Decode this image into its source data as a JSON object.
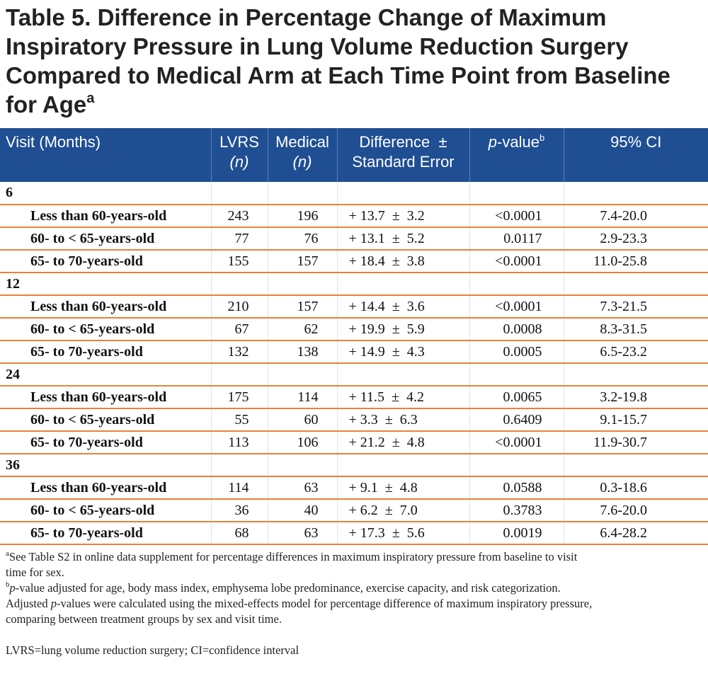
{
  "title": {
    "text": "Table 5. Difference in Percentage Change of Maximum Inspiratory Pressure in Lung Volume Reduction Surgery Compared to Medical Arm at Each Time Point from Baseline for Age",
    "sup": "a"
  },
  "header": {
    "visit": "Visit (Months)",
    "lvrs": "LVRS",
    "lvrs_n": "(n)",
    "medical": "Medical",
    "medical_n": "(n)",
    "difference_1": "Difference  ±",
    "difference_2": "Standard Error",
    "pvalue_p": "p",
    "pvalue_rest": "-value",
    "pvalue_sup": "b",
    "ci": "95% CI"
  },
  "groups": [
    {
      "visit": "6",
      "rows": [
        {
          "label": "Less than 60-years-old",
          "lvrs": "243",
          "medical": "196",
          "diff": "+ 13.7  ±  3.2",
          "p": "<0.0001",
          "ci": "7.4-20.0"
        },
        {
          "label": "60- to < 65-years-old",
          "lvrs": "77",
          "medical": "76",
          "diff": "+ 13.1  ±  5.2",
          "p": "0.0117",
          "ci": "2.9-23.3"
        },
        {
          "label": "65- to 70-years-old",
          "lvrs": "155",
          "medical": "157",
          "diff": "+ 18.4  ±  3.8",
          "p": "<0.0001",
          "ci": "11.0-25.8"
        }
      ]
    },
    {
      "visit": "12",
      "rows": [
        {
          "label": "Less than 60-years-old",
          "lvrs": "210",
          "medical": "157",
          "diff": "+ 14.4  ±  3.6",
          "p": "<0.0001",
          "ci": "7.3-21.5"
        },
        {
          "label": "60- to < 65-years-old",
          "lvrs": "67",
          "medical": "62",
          "diff": "+ 19.9  ±  5.9",
          "p": "0.0008",
          "ci": "8.3-31.5"
        },
        {
          "label": "65- to 70-years-old",
          "lvrs": "132",
          "medical": "138",
          "diff": "+ 14.9  ±  4.3",
          "p": "0.0005",
          "ci": "6.5-23.2"
        }
      ]
    },
    {
      "visit": "24",
      "rows": [
        {
          "label": "Less than 60-years-old",
          "lvrs": "175",
          "medical": "114",
          "diff": "+ 11.5  ±  4.2",
          "p": "0.0065",
          "ci": "3.2-19.8"
        },
        {
          "label": "60- to < 65-years-old",
          "lvrs": "55",
          "medical": "60",
          "diff": "+ 3.3  ±  6.3",
          "p": "0.6409",
          "ci": "9.1-15.7"
        },
        {
          "label": "65- to 70-years-old",
          "lvrs": "113",
          "medical": "106",
          "diff": "+ 21.2  ±  4.8",
          "p": "<0.0001",
          "ci": "11.9-30.7"
        }
      ]
    },
    {
      "visit": "36",
      "rows": [
        {
          "label": "Less than 60-years-old",
          "lvrs": "114",
          "medical": "63",
          "diff": "+ 9.1  ±  4.8",
          "p": "0.0588",
          "ci": "0.3-18.6"
        },
        {
          "label": "60- to < 65-years-old",
          "lvrs": "36",
          "medical": "40",
          "diff": "+ 6.2  ±  7.0",
          "p": "0.3783",
          "ci": "7.6-20.0"
        },
        {
          "label": "65- to 70-years-old",
          "lvrs": "68",
          "medical": "63",
          "diff": "+ 17.3  ±  5.6",
          "p": "0.0019",
          "ci": "6.4-28.2"
        }
      ]
    }
  ],
  "footnotes": {
    "a_mark": "a",
    "a_text": "See Table S2 in online data supplement for percentage differences in maximum inspiratory pressure from baseline to visit time for sex.",
    "b_mark": "b",
    "b_p": "p",
    "b_text1": "-value adjusted for age, body mass index, emphysema lobe predominance, exercise capacity, and risk categorization. Adjusted ",
    "b_p2": "p",
    "b_text2": "-values were calculated using the mixed-effects model for percentage difference of maximum inspiratory pressure, comparing between treatment groups by sex and visit time.",
    "abbrev": "LVRS=lung volume reduction surgery; CI=confidence interval"
  },
  "colors": {
    "header_bg": "#1f4e93",
    "row_rule": "#e8813a"
  }
}
